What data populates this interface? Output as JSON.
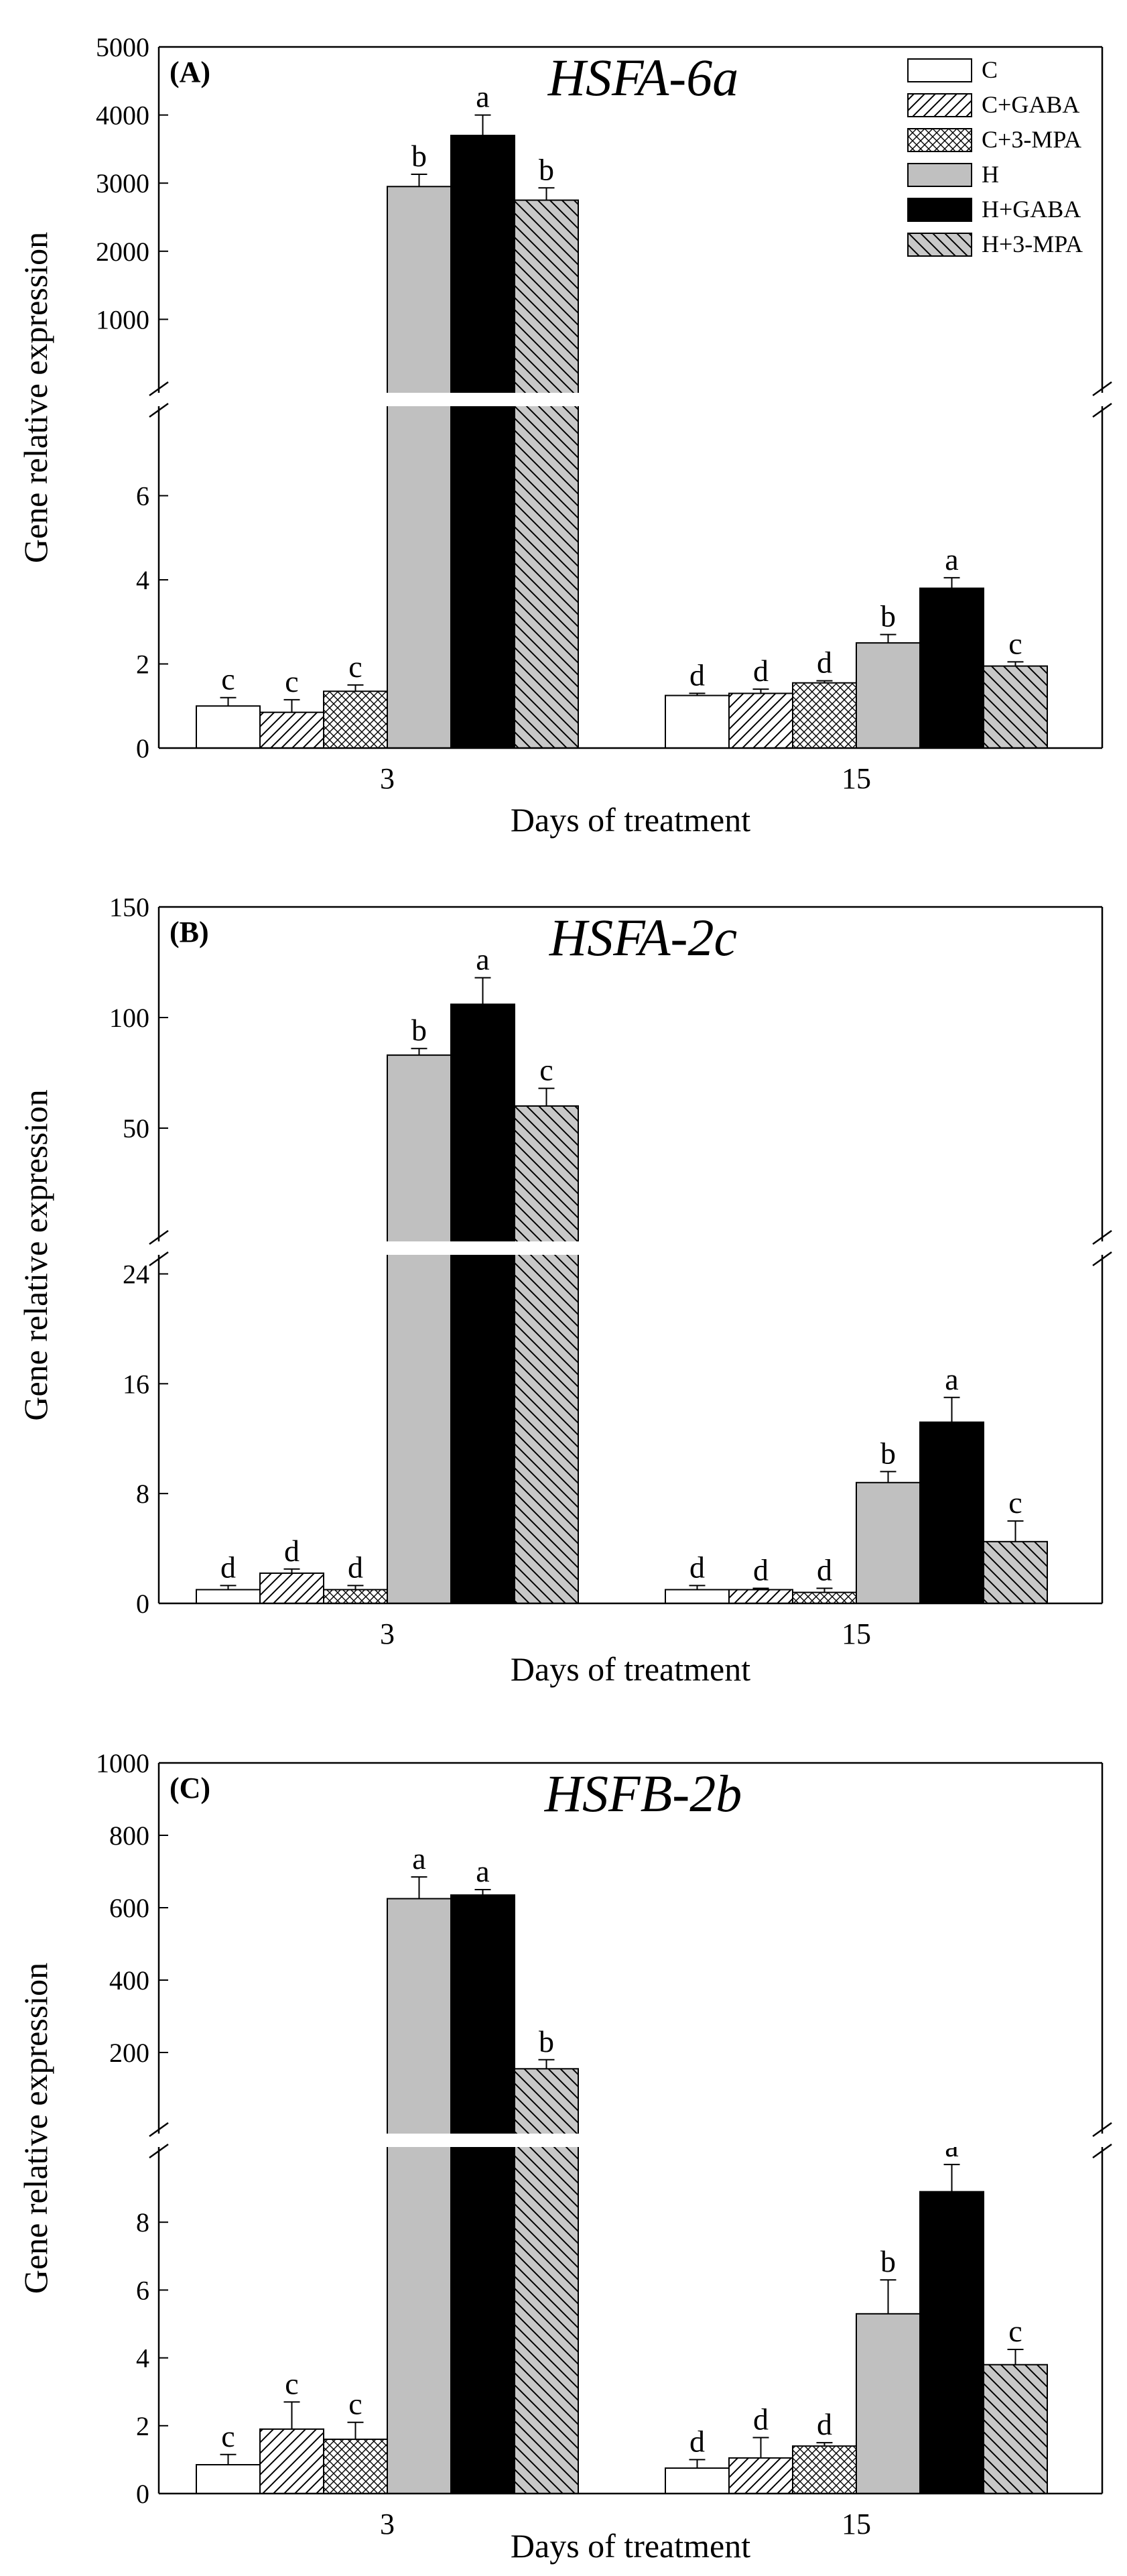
{
  "legend": [
    {
      "name": "C",
      "fill": "white"
    },
    {
      "name": "C+GABA",
      "fill": "hatch-right"
    },
    {
      "name": "C+3-MPA",
      "fill": "crosshatch"
    },
    {
      "name": "H",
      "fill": "#c0c0c0"
    },
    {
      "name": "H+GABA",
      "fill": "#000000"
    },
    {
      "name": "H+3-MPA",
      "fill": "hatch-left-gray"
    }
  ],
  "chart_data": [
    {
      "type": "bar",
      "panel": "(A)",
      "title": "HSFA-6a",
      "xlabel": "Days of treatment",
      "ylabel": "Gene relative expression",
      "categories": [
        "3",
        "15"
      ],
      "axis_break": true,
      "upper_ylim": [
        0,
        5000
      ],
      "upper_ticks": [
        1000,
        2000,
        3000,
        4000,
        5000
      ],
      "lower_ylim": [
        0,
        8
      ],
      "lower_ticks": [
        0,
        2,
        4,
        6
      ],
      "series": [
        {
          "name": "C",
          "values": [
            1.0,
            1.25
          ],
          "errors": [
            0.2,
            0.05
          ],
          "letters": [
            "c",
            "d"
          ]
        },
        {
          "name": "C+GABA",
          "values": [
            0.85,
            1.3
          ],
          "errors": [
            0.3,
            0.1
          ],
          "letters": [
            "c",
            "d"
          ]
        },
        {
          "name": "C+3-MPA",
          "values": [
            1.35,
            1.55
          ],
          "errors": [
            0.15,
            0.05
          ],
          "letters": [
            "c",
            "d"
          ]
        },
        {
          "name": "H",
          "values": [
            2950,
            2.5
          ],
          "errors": [
            180,
            0.2
          ],
          "letters": [
            "b",
            "b"
          ]
        },
        {
          "name": "H+GABA",
          "values": [
            3700,
            3.8
          ],
          "errors": [
            300,
            0.25
          ],
          "letters": [
            "a",
            "a"
          ]
        },
        {
          "name": "H+3-MPA",
          "values": [
            2750,
            1.95
          ],
          "errors": [
            180,
            0.1
          ],
          "letters": [
            "b",
            "c"
          ]
        }
      ]
    },
    {
      "type": "bar",
      "panel": "(B)",
      "title": "HSFA-2c",
      "xlabel": "Days of treatment",
      "ylabel": "Gene relative expression",
      "categories": [
        "3",
        "15"
      ],
      "axis_break": true,
      "upper_ylim": [
        0,
        150
      ],
      "upper_ticks": [
        50,
        100,
        150
      ],
      "lower_ylim": [
        0,
        25
      ],
      "lower_ticks": [
        0,
        8,
        16,
        24
      ],
      "series": [
        {
          "name": "C",
          "values": [
            1.0,
            1.0
          ],
          "errors": [
            0.3,
            0.3
          ],
          "letters": [
            "d",
            "d"
          ]
        },
        {
          "name": "C+GABA",
          "values": [
            2.2,
            1.0
          ],
          "errors": [
            0.3,
            0.1
          ],
          "letters": [
            "d",
            "d"
          ]
        },
        {
          "name": "C+3-MPA",
          "values": [
            1.0,
            0.8
          ],
          "errors": [
            0.3,
            0.3
          ],
          "letters": [
            "d",
            "d"
          ]
        },
        {
          "name": "H",
          "values": [
            83,
            8.8
          ],
          "errors": [
            3,
            0.8
          ],
          "letters": [
            "b",
            "b"
          ]
        },
        {
          "name": "H+GABA",
          "values": [
            106,
            13.2
          ],
          "errors": [
            12,
            1.8
          ],
          "letters": [
            "a",
            "a"
          ]
        },
        {
          "name": "H+3-MPA",
          "values": [
            60,
            4.5
          ],
          "errors": [
            8,
            1.5
          ],
          "letters": [
            "c",
            "c"
          ]
        }
      ]
    },
    {
      "type": "bar",
      "panel": "(C)",
      "title": "HSFB-2b",
      "xlabel": "Days of treatment",
      "ylabel": "Gene relative expression",
      "categories": [
        "3",
        "15"
      ],
      "axis_break": true,
      "upper_ylim": [
        0,
        1000
      ],
      "upper_ticks": [
        200,
        400,
        600,
        800,
        1000
      ],
      "lower_ylim": [
        0,
        10
      ],
      "lower_ticks": [
        0,
        2,
        4,
        6,
        8
      ],
      "series": [
        {
          "name": "C",
          "values": [
            0.85,
            0.75
          ],
          "errors": [
            0.3,
            0.25
          ],
          "letters": [
            "c",
            "d"
          ]
        },
        {
          "name": "C+GABA",
          "values": [
            1.9,
            1.05
          ],
          "errors": [
            0.8,
            0.6
          ],
          "letters": [
            "c",
            "d"
          ]
        },
        {
          "name": "C+3-MPA",
          "values": [
            1.6,
            1.4
          ],
          "errors": [
            0.5,
            0.1
          ],
          "letters": [
            "c",
            "d"
          ]
        },
        {
          "name": "H",
          "values": [
            625,
            5.3
          ],
          "errors": [
            60,
            1.0
          ],
          "letters": [
            "a",
            "b"
          ]
        },
        {
          "name": "H+GABA",
          "values": [
            635,
            8.9
          ],
          "errors": [
            15,
            0.8
          ],
          "letters": [
            "a",
            "a"
          ]
        },
        {
          "name": "H+3-MPA",
          "values": [
            155,
            3.8
          ],
          "errors": [
            25,
            0.45
          ],
          "letters": [
            "b",
            "c"
          ]
        }
      ]
    }
  ]
}
